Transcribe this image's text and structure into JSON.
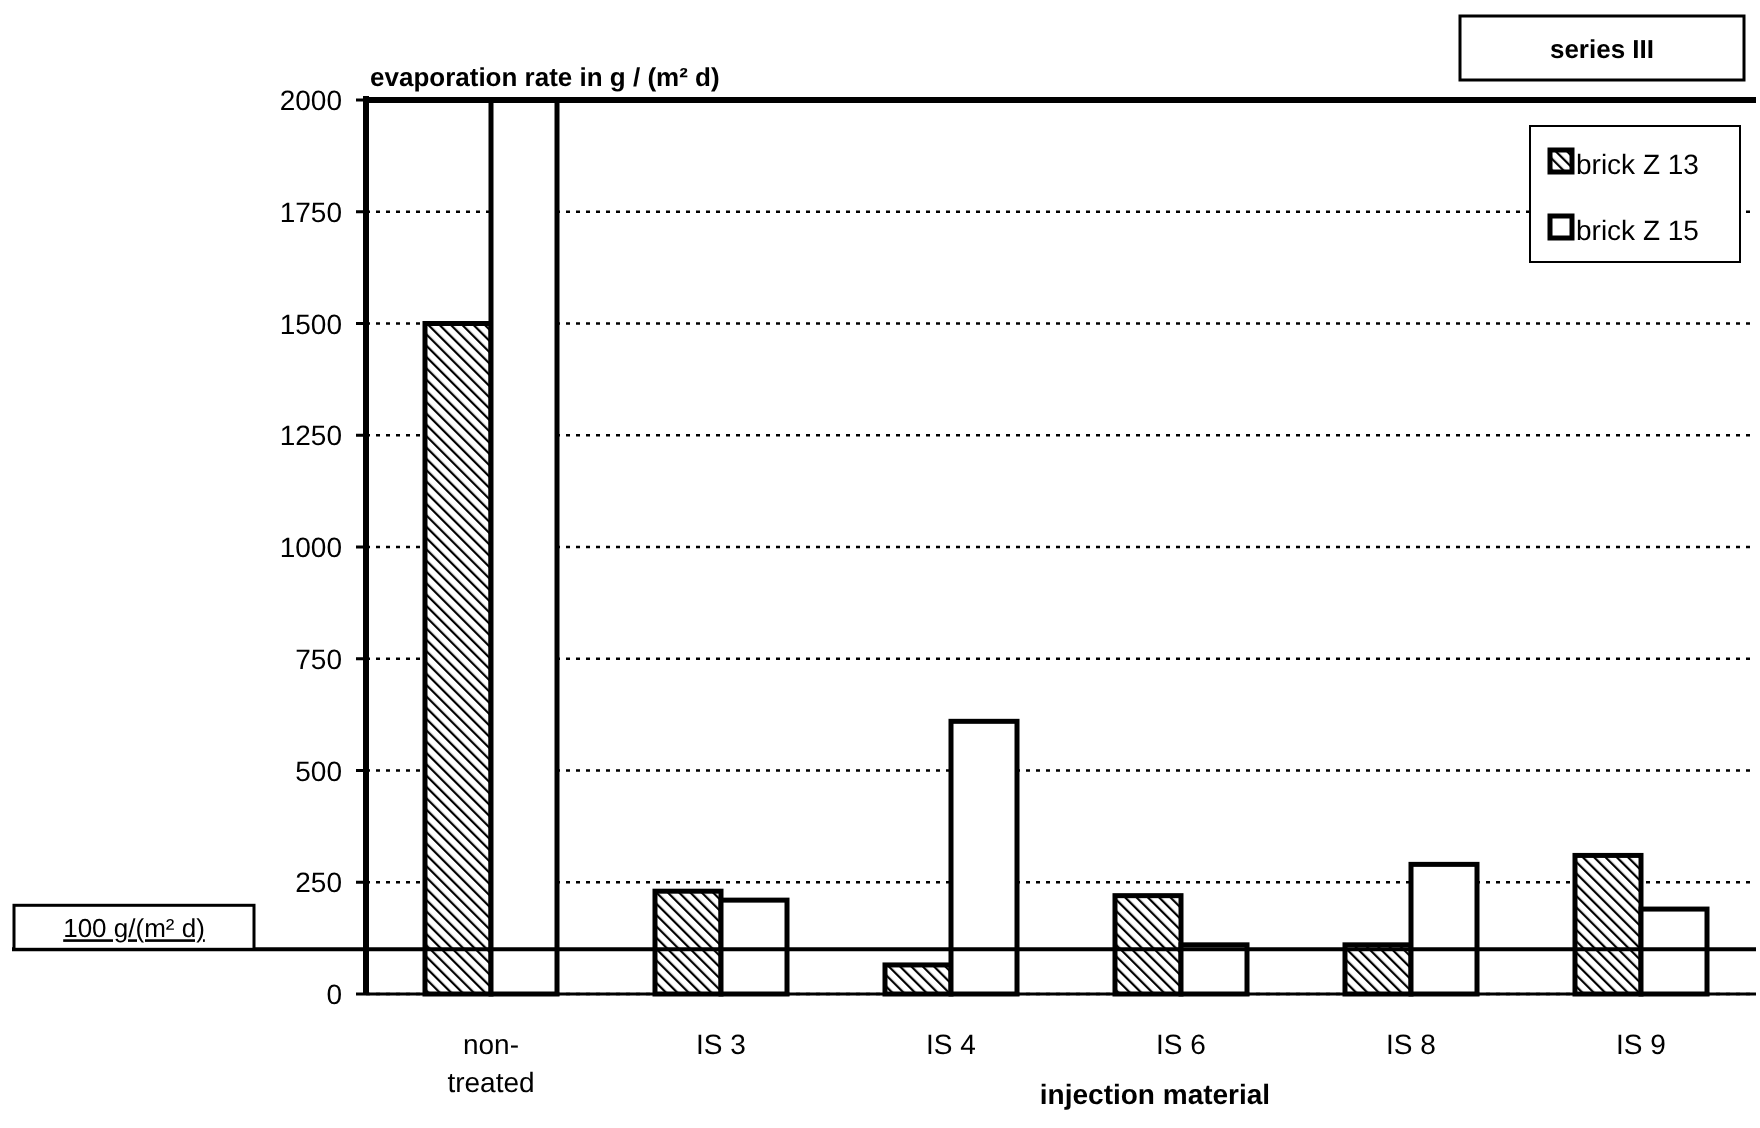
{
  "chart_data": {
    "type": "bar",
    "ylabel": "evaporation rate in g / (m² d)",
    "xlabel": "injection material",
    "categories": [
      "non-\ntreated",
      "IS 3",
      "IS 4",
      "IS 6",
      "IS 8",
      "IS 9"
    ],
    "series": [
      {
        "name": "brick Z 13",
        "color": "#000000",
        "values": [
          1500,
          230,
          65,
          220,
          110,
          310
        ]
      },
      {
        "name": "brick Z 15",
        "color": "#ffffff",
        "values": [
          2000,
          210,
          610,
          110,
          290,
          190
        ]
      }
    ],
    "ylim": [
      0,
      2000
    ],
    "yticks": [
      0,
      250,
      500,
      750,
      1000,
      1250,
      1500,
      1750,
      2000
    ],
    "grid": "y",
    "legend": "top right",
    "ref_lines": [
      {
        "axis": "y",
        "value": 100,
        "label": "100 g/(m² d)"
      }
    ],
    "annotations": [
      "series III"
    ]
  }
}
